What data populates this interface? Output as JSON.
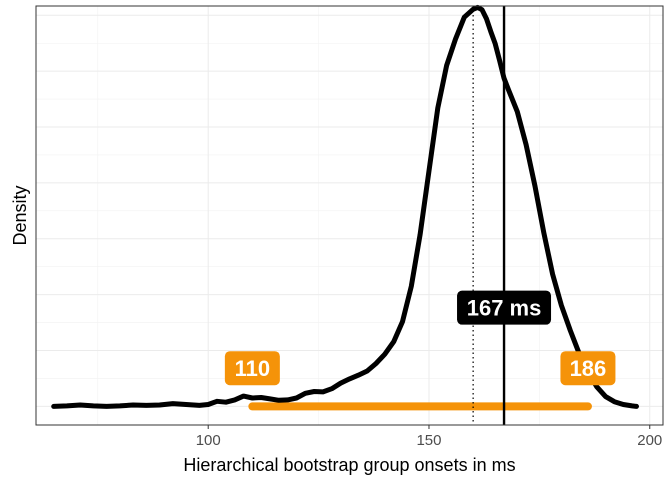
{
  "chart_data": {
    "type": "line",
    "title": "",
    "xlabel": "Hierarchical bootstrap group onsets in ms",
    "ylabel": "Density",
    "xlim": [
      61,
      203
    ],
    "ylim": [
      -0.004,
      0.086
    ],
    "x_ticks": [
      100,
      150,
      200
    ],
    "y_ticks_shown": false,
    "grid": true,
    "series": [
      {
        "type": "density",
        "color": "#000000",
        "x": [
          65,
          68,
          71,
          74,
          77,
          80,
          83,
          86,
          89,
          92,
          95,
          98,
          100,
          102,
          104,
          106,
          108,
          110,
          112,
          114,
          116,
          118,
          120,
          122,
          124,
          126,
          128,
          130,
          132,
          134,
          136,
          138,
          140,
          142,
          144,
          146,
          148,
          150,
          152,
          154,
          156,
          158,
          160,
          161,
          162,
          163,
          164,
          165,
          166,
          167,
          168,
          170,
          172,
          174,
          176,
          178,
          180,
          182,
          184,
          186,
          188,
          190,
          192,
          194,
          196,
          197
        ],
        "y": [
          0.0,
          0.0001,
          0.0003,
          0.0001,
          0.0,
          0.0001,
          0.0003,
          0.0002,
          0.0003,
          0.0006,
          0.0004,
          0.0002,
          0.0004,
          0.0011,
          0.0009,
          0.0014,
          0.0022,
          0.0018,
          0.0019,
          0.0016,
          0.0013,
          0.0014,
          0.0018,
          0.0028,
          0.0032,
          0.0031,
          0.0038,
          0.005,
          0.0059,
          0.0067,
          0.0076,
          0.0092,
          0.0112,
          0.0139,
          0.0182,
          0.0258,
          0.0369,
          0.0506,
          0.0641,
          0.0732,
          0.0789,
          0.0836,
          0.0853,
          0.0857,
          0.0852,
          0.0833,
          0.0805,
          0.0779,
          0.0743,
          0.0705,
          0.068,
          0.0633,
          0.0562,
          0.0473,
          0.0373,
          0.0284,
          0.0217,
          0.0163,
          0.0114,
          0.0074,
          0.0042,
          0.0021,
          0.001,
          0.0004,
          0.0001,
          0.0
        ]
      }
    ],
    "interval": {
      "low": 110,
      "high": 186,
      "color": "#f59309"
    },
    "lines": [
      {
        "x": 160,
        "style": "dotted",
        "color": "#000000"
      },
      {
        "x": 167,
        "style": "solid",
        "color": "#000000"
      }
    ],
    "labels": [
      {
        "text": "110",
        "x": 110,
        "y": 0.0082,
        "fill": "#f59309"
      },
      {
        "text": "186",
        "x": 186,
        "y": 0.0082,
        "fill": "#f59309"
      },
      {
        "text": "167 ms",
        "x": 167,
        "y": 0.0212,
        "fill": "#000000"
      }
    ]
  }
}
